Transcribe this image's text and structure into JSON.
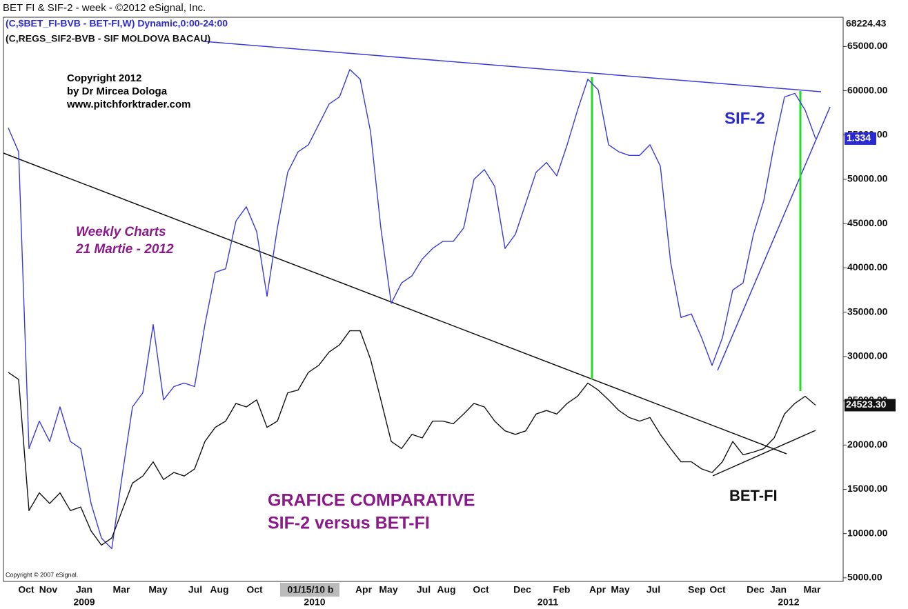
{
  "header": {
    "title": "BET FI & SIF-2  -  week - ©2012 eSignal, Inc.",
    "line1": "(C,$BET_FI-BVB - BET-FI,W) Dynamic,0:00-24:00",
    "line2": "(C,REGS_SIF2-BVB - SIF MOLDOVA BACAU)"
  },
  "chart_data": {
    "type": "line",
    "ylim": [
      4600,
      68300
    ],
    "yticks": [
      {
        "value": 5000,
        "label": "5000.00"
      },
      {
        "value": 10000,
        "label": "10000.00"
      },
      {
        "value": 15000,
        "label": "15000.00"
      },
      {
        "value": 20000,
        "label": "20000.00"
      },
      {
        "value": 25000,
        "label": "25000.00"
      },
      {
        "value": 30000,
        "label": "30000.00"
      },
      {
        "value": 35000,
        "label": "35000.00"
      },
      {
        "value": 40000,
        "label": "40000.00"
      },
      {
        "value": 45000,
        "label": "45000.00"
      },
      {
        "value": 50000,
        "label": "50000.00"
      },
      {
        "value": 55000,
        "label": "55000.00"
      },
      {
        "value": 60000,
        "label": "60000.00"
      },
      {
        "value": 65000,
        "label": "65000.00"
      }
    ],
    "x_labels": [
      "Oct",
      "Nov",
      "Jan",
      "Mar",
      "May",
      "Jul",
      "Aug",
      "Oct",
      "01/15/10 b",
      "Apr",
      "May",
      "Jul",
      "Aug",
      "Oct",
      "Dec",
      "Feb",
      "Apr",
      "May",
      "Jul",
      "Sep",
      "Oct",
      "Dec",
      "Jan",
      "Mar"
    ],
    "years": [
      "2009",
      "2010",
      "2011",
      "2012"
    ],
    "series": [
      {
        "name": "SIF-2",
        "color": "#3a3ad8",
        "values": [
          55800,
          53100,
          19600,
          22700,
          20400,
          24300,
          20400,
          19600,
          13400,
          9500,
          8300,
          16500,
          24300,
          25900,
          33600,
          25100,
          26600,
          27000,
          26600,
          33600,
          39500,
          39900,
          45300,
          46900,
          44100,
          36800,
          44500,
          50800,
          53100,
          53900,
          56200,
          58500,
          59300,
          62400,
          61300,
          55400,
          44500,
          36000,
          38300,
          39100,
          41000,
          42200,
          43000,
          43000,
          44500,
          50000,
          51100,
          49200,
          42200,
          43800,
          47300,
          50800,
          51900,
          50400,
          53900,
          57800,
          61300,
          60100,
          53900,
          53100,
          52700,
          52700,
          53900,
          51500,
          40600,
          34400,
          34800,
          32100,
          29000,
          32100,
          37500,
          38300,
          43800,
          47600,
          53900,
          59300,
          59700,
          57800,
          54600
        ]
      },
      {
        "name": "BET-FI",
        "color": "#111111",
        "values": [
          28200,
          27400,
          12600,
          14600,
          13400,
          14600,
          12600,
          13000,
          10300,
          8700,
          9500,
          12600,
          15700,
          16500,
          18100,
          16100,
          16900,
          16500,
          17300,
          20400,
          22000,
          22700,
          24700,
          24300,
          25100,
          22000,
          22700,
          25900,
          26200,
          28200,
          29000,
          30500,
          31300,
          32900,
          32900,
          29700,
          25100,
          20400,
          19600,
          21200,
          20800,
          22700,
          22700,
          22400,
          23500,
          24700,
          24300,
          22700,
          21600,
          21200,
          21600,
          23500,
          23900,
          23500,
          24700,
          25500,
          27000,
          26200,
          25100,
          23900,
          23100,
          22700,
          23100,
          21200,
          19600,
          18100,
          18100,
          17300,
          16900,
          18100,
          20400,
          18900,
          19200,
          19600,
          20800,
          23500,
          24700,
          25500,
          24500
        ]
      }
    ],
    "price_labels": {
      "top": "68224.43",
      "sif2": "1.334",
      "betfi": "24523.30"
    },
    "annotations": {
      "copyright1": "Copyright 2012",
      "copyright2": "by Dr Mircea Dologa",
      "copyright3": "www.pitchforktrader.com",
      "weekly1": "Weekly Charts",
      "weekly2": "21 Martie - 2012",
      "grafice1": "GRAFICE COMPARATIVE",
      "grafice2": "SIF-2 versus BET-FI",
      "esignal": "Copyright © 2007 eSignal."
    }
  }
}
